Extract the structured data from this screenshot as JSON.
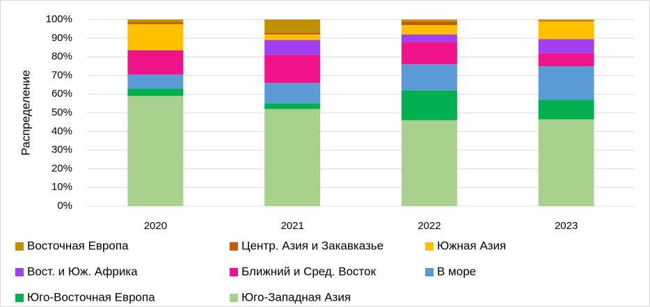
{
  "chart_data": {
    "type": "stacked_bar",
    "y_label": "Распределение",
    "categories": [
      "2020",
      "2021",
      "2022",
      "2023"
    ],
    "series": [
      {
        "name": "Восточная Европа",
        "color": "#bf9000",
        "values": [
          1.5,
          7,
          1,
          0.5
        ]
      },
      {
        "name": "Центр. Азия и Закавказье",
        "color": "#c55a11",
        "values": [
          1,
          1,
          2,
          0.5
        ]
      },
      {
        "name": "Южная Азия",
        "color": "#ffc000",
        "values": [
          14,
          3,
          5,
          9.5
        ]
      },
      {
        "name": "Вост. и Юж. Африка",
        "color": "#a040f0",
        "values": [
          0,
          8,
          4,
          7.5
        ]
      },
      {
        "name": "Ближний и Сред. Восток",
        "color": "#f0148c",
        "values": [
          13,
          15,
          12,
          7
        ]
      },
      {
        "name": "В море",
        "color": "#5b9bd5",
        "values": [
          7.5,
          11,
          14,
          18
        ]
      },
      {
        "name": "Юго-Восточная Европа",
        "color": "#00b050",
        "values": [
          4,
          3,
          16,
          10.5
        ]
      },
      {
        "name": "Юго-Западная Азия",
        "color": "#a9d18e",
        "values": [
          59,
          52,
          46,
          46.5
        ]
      }
    ],
    "ylim": [
      0,
      100
    ],
    "yticks": [
      {
        "value": 0,
        "label": "0%"
      },
      {
        "value": 10,
        "label": "10%"
      },
      {
        "value": 20,
        "label": "20%"
      },
      {
        "value": 30,
        "label": "30%"
      },
      {
        "value": 40,
        "label": "40%"
      },
      {
        "value": 50,
        "label": "50%"
      },
      {
        "value": 60,
        "label": "60%"
      },
      {
        "value": 70,
        "label": "70%"
      },
      {
        "value": 80,
        "label": "80%"
      },
      {
        "value": 90,
        "label": "90%"
      },
      {
        "value": 100,
        "label": "100%"
      }
    ],
    "grid": true
  }
}
